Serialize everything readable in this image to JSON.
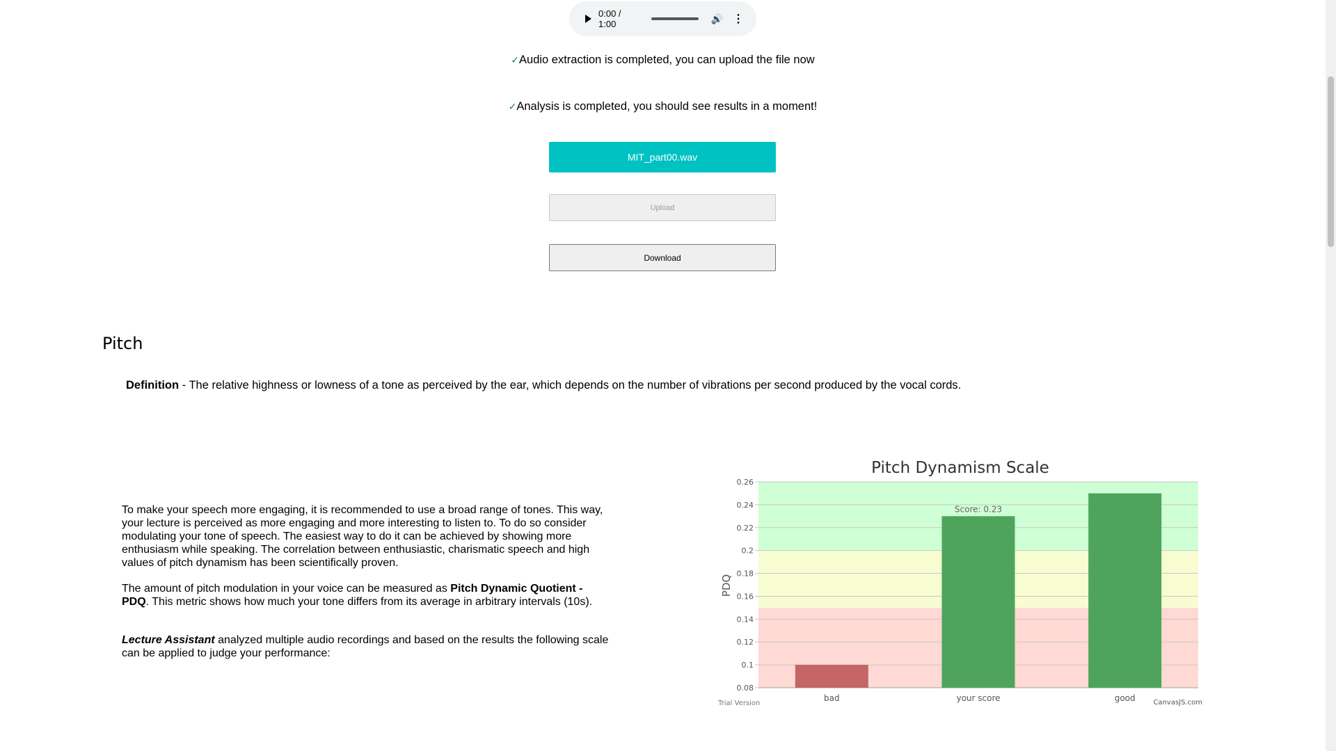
{
  "player": {
    "time": "0:00 / 1:00",
    "progress": 0
  },
  "status": {
    "extraction": "Audio extraction is completed, you can upload the file now",
    "analysis": "Analysis is completed, you should see results in a moment!",
    "check": "✓"
  },
  "buttons": {
    "file": "MIT_part00.wav",
    "upload": "Upload",
    "download": "Download"
  },
  "pitch": {
    "title": "Pitch",
    "definition_label": "Definition",
    "definition_text": " - The relative highness or lowness of a tone as perceived by the ear, which depends on the number of vibrations per second produced by the vocal cords.",
    "para1": "To make your speech more engaging, it is recommended to use a broad range of tones. This way, your lecture is perceived as more engaging and more interesting to listen to. To do so consider modulating your tone of speech. The easiest way to do it can be achieved by showing more enthusiasm while speaking. The correlation between enthusiastic, charismatic speech and high values of pitch dynamism has been scientifically proven.",
    "para2_a": "The amount of pitch modulation in your voice can be measured as ",
    "para2_b": "Pitch Dynamic Quotient - PDQ",
    "para2_c": ". This metric shows how much your tone differs from its average in arbitrary intervals (10s).",
    "para3_a": "Lecture Assistant",
    "para3_b": " analyzed multiple audio recordings and based on the results the following scale can be applied to judge your performance:"
  },
  "chart_data": {
    "type": "bar",
    "title": "Pitch Dynamism Scale",
    "ylabel": "PDQ",
    "xlabel": "",
    "categories": [
      "bad",
      "your score",
      "good"
    ],
    "values": [
      0.1,
      0.23,
      0.25
    ],
    "colors": [
      "#c46666",
      "#4ea45c",
      "#4ea45c"
    ],
    "data_labels": [
      "",
      "Score: 0.23",
      ""
    ],
    "ylim": [
      0.08,
      0.26
    ],
    "yticks": [
      "0.08",
      "0.1",
      "0.12",
      "0.14",
      "0.16",
      "0.18",
      "0.2",
      "0.22",
      "0.24",
      "0.26"
    ],
    "bands": [
      {
        "from": 0.08,
        "to": 0.15,
        "color": "#ffd9d4"
      },
      {
        "from": 0.15,
        "to": 0.2,
        "color": "#f7fdd0"
      },
      {
        "from": 0.2,
        "to": 0.26,
        "color": "#cfffd4"
      }
    ],
    "grid": true,
    "watermark_left": "Trial Version",
    "watermark_right": "CanvasJS.com"
  }
}
